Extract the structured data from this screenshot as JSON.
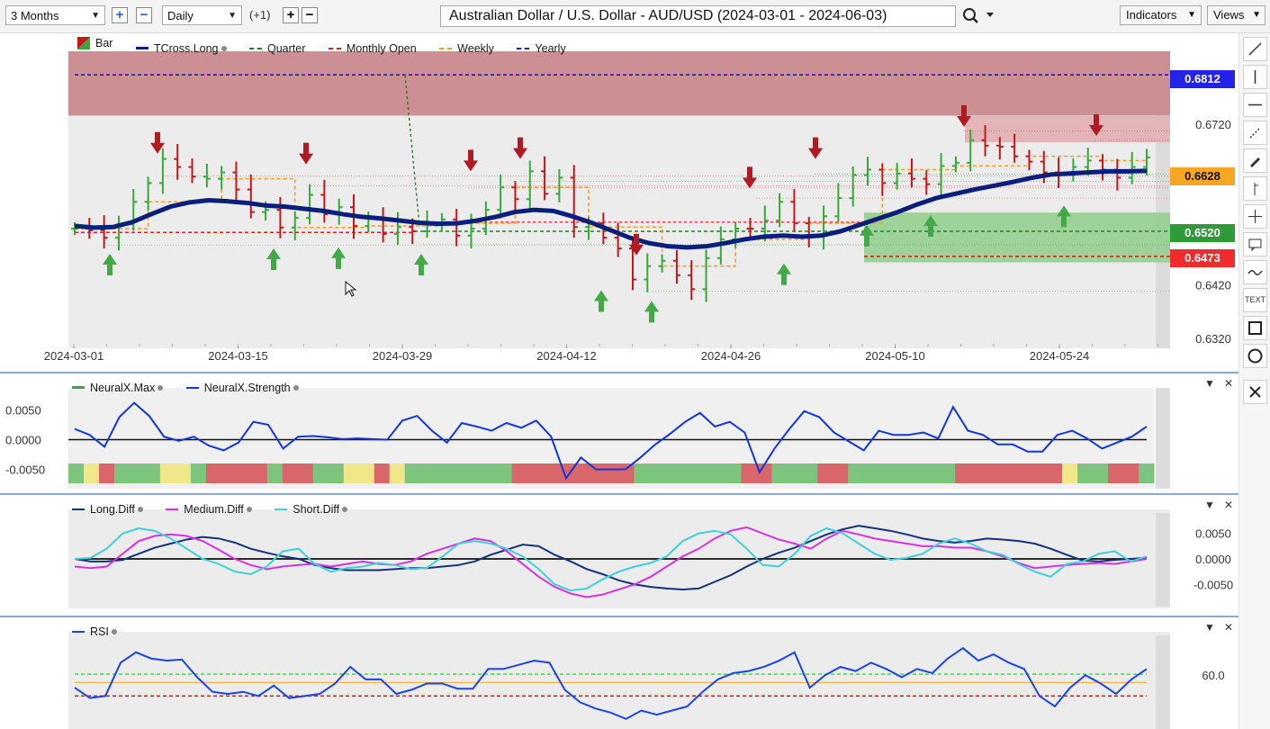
{
  "toolbar": {
    "range_label": "3 Months",
    "interval_label": "Daily",
    "offset_label": "(+1)",
    "title": "Australian Dollar / U.S. Dollar - AUD/USD (2024-03-01 - 2024-06-03)",
    "indicators_label": "Indicators",
    "views_label": "Views"
  },
  "colors": {
    "bull": "#39a83c",
    "bear": "#c0181d",
    "tcross": "#0a1f7a",
    "resistance_zone": "#c98a8f",
    "support_zone": "#8fcf8a",
    "yearly": "#1b1bd6",
    "monthly": "#e02020",
    "weekly": "#f0a030",
    "quarter": "#2c7a2c",
    "strength_line": "#1236d8",
    "long_diff": "#13337a",
    "medium_diff": "#d633e0",
    "short_diff": "#3fd0d8",
    "rsi_line": "#1c44e0"
  },
  "main_pane": {
    "legend": [
      {
        "label": "Bar",
        "icon": "bar-icon"
      },
      {
        "label": "TCross.Long"
      },
      {
        "label": "Quarter"
      },
      {
        "label": "Monthly Open"
      },
      {
        "label": "Weekly"
      },
      {
        "label": "Yearly"
      }
    ],
    "price_tags": [
      {
        "value": "0.6812",
        "bg": "#2323e8",
        "fg": "#ffffff"
      },
      {
        "value": "0.6628",
        "bg": "#f5a623",
        "fg": "#111111"
      },
      {
        "value": "0.6520",
        "bg": "#2e9a3a",
        "fg": "#ffffff"
      },
      {
        "value": "0.6473",
        "bg": "#ef2b2b",
        "fg": "#ffffff"
      }
    ]
  },
  "neural_pane": {
    "legend": [
      {
        "label": "NeuralX.Max"
      },
      {
        "label": "NeuralX.Strength"
      }
    ]
  },
  "diff_pane": {
    "legend": [
      {
        "label": "Long.Diff"
      },
      {
        "label": "Medium.Diff"
      },
      {
        "label": "Short.Diff"
      }
    ]
  },
  "rsi_pane": {
    "legend": [
      {
        "label": "RSI"
      }
    ]
  },
  "chart_data": [
    {
      "type": "ohlc",
      "title": "Australian Dollar / U.S. Dollar - AUD/USD (2024-03-01 - 2024-06-03)",
      "x_tick_labels": [
        "2024-03-01",
        "2024-03-15",
        "2024-03-29",
        "2024-04-12",
        "2024-04-26",
        "2024-05-10",
        "2024-05-24"
      ],
      "y_tick_labels": [
        "0.6720",
        "0.6628",
        "0.6520",
        "0.6420",
        "0.6320"
      ],
      "ylim": [
        0.631,
        0.6856
      ],
      "close": [
        0.6525,
        0.6522,
        0.6508,
        0.6533,
        0.6575,
        0.661,
        0.6655,
        0.664,
        0.6622,
        0.6618,
        0.663,
        0.6598,
        0.6556,
        0.656,
        0.6527,
        0.6545,
        0.6588,
        0.6552,
        0.6565,
        0.653,
        0.6545,
        0.6515,
        0.6528,
        0.652,
        0.6535,
        0.6542,
        0.6512,
        0.6525,
        0.656,
        0.6602,
        0.658,
        0.6632,
        0.659,
        0.662,
        0.6528,
        0.6535,
        0.6508,
        0.6488,
        0.643,
        0.6455,
        0.6465,
        0.6438,
        0.6412,
        0.647,
        0.6505,
        0.6525,
        0.6525,
        0.654,
        0.6575,
        0.6535,
        0.651,
        0.6548,
        0.6582,
        0.6625,
        0.6635,
        0.661,
        0.6628,
        0.6618,
        0.6608,
        0.6642,
        0.6648,
        0.669,
        0.668,
        0.6678,
        0.666,
        0.665,
        0.663,
        0.6625,
        0.664,
        0.6652,
        0.6635,
        0.662,
        0.664,
        0.6658
      ],
      "bar_direction": [
        "up",
        "down",
        "down",
        "up",
        "up",
        "up",
        "up",
        "down",
        "down",
        "up",
        "up",
        "down",
        "down",
        "up",
        "down",
        "up",
        "up",
        "down",
        "up",
        "down",
        "up",
        "down",
        "up",
        "down",
        "up",
        "up",
        "down",
        "up",
        "up",
        "up",
        "down",
        "up",
        "down",
        "up",
        "down",
        "up",
        "down",
        "down",
        "down",
        "up",
        "up",
        "down",
        "down",
        "up",
        "up",
        "up",
        "down",
        "up",
        "up",
        "down",
        "down",
        "up",
        "up",
        "up",
        "up",
        "down",
        "up",
        "down",
        "down",
        "up",
        "up",
        "up",
        "down",
        "down",
        "down",
        "down",
        "down",
        "down",
        "up",
        "up",
        "down",
        "down",
        "up",
        "up"
      ],
      "tcross_long": [
        0.653,
        0.6527,
        0.6528,
        0.6537,
        0.6552,
        0.6566,
        0.6574,
        0.6578,
        0.6576,
        0.6573,
        0.6568,
        0.6566,
        0.6562,
        0.6558,
        0.6552,
        0.6547,
        0.6544,
        0.654,
        0.6536,
        0.6534,
        0.6535,
        0.654,
        0.6547,
        0.6556,
        0.656,
        0.6558,
        0.6548,
        0.6536,
        0.6522,
        0.6508,
        0.6498,
        0.6492,
        0.649,
        0.6492,
        0.6498,
        0.6505,
        0.651,
        0.6512,
        0.651,
        0.6512,
        0.652,
        0.6532,
        0.6544,
        0.6556,
        0.657,
        0.6582,
        0.659,
        0.6598,
        0.6605,
        0.6612,
        0.662,
        0.6626,
        0.6628,
        0.663,
        0.6632,
        0.6632,
        0.6633
      ],
      "yearly_level": 0.6812,
      "monthly_open_levels": [
        0.6518,
        0.6537,
        0.6473
      ],
      "weekly_level_latest": 0.6628,
      "quarter_level": 0.652,
      "resistance_zone": [
        0.6736,
        0.6856
      ],
      "support_zone": [
        0.6462,
        0.6555
      ]
    },
    {
      "type": "line",
      "title": "NeuralX",
      "series": [
        {
          "name": "NeuralX.Strength",
          "values": [
            0.0018,
            0.0008,
            -0.0012,
            0.0038,
            0.0062,
            0.004,
            0.0005,
            -0.0002,
            0.0005,
            -0.001,
            -0.0018,
            -0.0005,
            0.003,
            0.0025,
            -0.0015,
            0.0005,
            0.0006,
            0.0004,
            0.0001,
            0.0002,
            0.0001,
            0.0,
            0.0032,
            0.004,
            0.0015,
            -0.0005,
            0.0028,
            0.0022,
            0.0015,
            0.0028,
            0.002,
            0.0032,
            0.0005,
            -0.0065,
            -0.003,
            -0.005,
            -0.005,
            -0.005,
            -0.003,
            -0.0008,
            0.001,
            0.003,
            0.0045,
            0.0022,
            0.003,
            0.0012,
            -0.0055,
            -0.0015,
            0.0018,
            0.0048,
            0.0038,
            0.0012,
            -0.0003,
            -0.0018,
            0.0015,
            0.0008,
            0.0008,
            0.0012,
            0.0002,
            0.0055,
            0.0015,
            0.0008,
            -0.0008,
            -0.0008,
            -0.002,
            -0.002,
            0.0008,
            0.0015,
            0.0002,
            -0.0015,
            -0.0005,
            0.0005,
            0.0022
          ]
        }
      ],
      "ylim": [
        -0.0078,
        0.0078
      ],
      "y_tick_labels": [
        "0.0050",
        "0.0000",
        "-0.0050"
      ],
      "max_state_segments": [
        "green",
        "yellow",
        "red",
        "green",
        "green",
        "green",
        "yellow",
        "yellow",
        "green",
        "red",
        "red",
        "red",
        "red",
        "green",
        "red",
        "red",
        "green",
        "green",
        "yellow",
        "yellow",
        "red",
        "yellow",
        "green",
        "green",
        "green",
        "green",
        "green",
        "green",
        "green",
        "red",
        "red",
        "red",
        "red",
        "red",
        "red",
        "red",
        "red",
        "green",
        "green",
        "green",
        "green",
        "green",
        "green",
        "green",
        "red",
        "red",
        "green",
        "green",
        "green",
        "red",
        "red",
        "green",
        "green",
        "green",
        "green",
        "green",
        "green",
        "green",
        "red",
        "red",
        "red",
        "red",
        "red",
        "red",
        "red",
        "yellow",
        "green",
        "green",
        "red",
        "red",
        "green"
      ]
    },
    {
      "type": "line",
      "title": "Diff",
      "series": [
        {
          "name": "Long.Diff",
          "values": [
            0.0,
            -0.0005,
            -0.0005,
            -0.0002,
            0.001,
            0.0022,
            0.003,
            0.0038,
            0.0043,
            0.004,
            0.0032,
            0.002,
            0.0012,
            0.0005,
            0.0,
            -0.0012,
            -0.0018,
            -0.0022,
            -0.0022,
            -0.0022,
            -0.002,
            -0.0018,
            -0.0018,
            -0.0015,
            -0.0012,
            -0.0005,
            0.0008,
            0.0018,
            0.0028,
            0.0025,
            0.0008,
            -0.0005,
            -0.002,
            -0.003,
            -0.0042,
            -0.005,
            -0.0055,
            -0.0058,
            -0.006,
            -0.0058,
            -0.0045,
            -0.0032,
            -0.0015,
            0.0,
            0.0012,
            0.0022,
            0.0035,
            0.0048,
            0.0058,
            0.0065,
            0.006,
            0.0055,
            0.0048,
            0.004,
            0.0035,
            0.0032,
            0.0035,
            0.004,
            0.0038,
            0.0035,
            0.003,
            0.002,
            0.0008,
            -0.0003,
            -0.0005,
            -0.0002,
            0.0,
            0.0002
          ]
        },
        {
          "name": "Medium.Diff",
          "values": [
            -0.0015,
            -0.0018,
            -0.0015,
            0.001,
            0.0035,
            0.0045,
            0.0048,
            0.0045,
            0.0035,
            0.0018,
            0.0,
            -0.0012,
            -0.002,
            -0.0015,
            -0.0012,
            -0.001,
            -0.0015,
            -0.001,
            -0.0005,
            -0.001,
            -0.0012,
            -0.0005,
            0.001,
            0.002,
            0.003,
            0.004,
            0.0035,
            0.0015,
            -0.001,
            -0.0035,
            -0.0055,
            -0.0068,
            -0.0075,
            -0.007,
            -0.006,
            -0.005,
            -0.0035,
            -0.0015,
            0.0005,
            0.002,
            0.004,
            0.0055,
            0.0062,
            0.005,
            0.0038,
            0.003,
            0.002,
            0.004,
            0.0055,
            0.0048,
            0.004,
            0.0035,
            0.003,
            0.0025,
            0.0025,
            0.0022,
            0.0022,
            0.0015,
            0.0005,
            -0.0008,
            -0.0018,
            -0.0015,
            -0.0012,
            -0.001,
            -0.0008,
            -0.001,
            -0.0005,
            0.0
          ]
        },
        {
          "name": "Short.Diff",
          "values": [
            0.0,
            0.0002,
            0.002,
            0.005,
            0.006,
            0.0055,
            0.004,
            0.002,
            0.0,
            -0.001,
            -0.0025,
            -0.003,
            -0.0015,
            0.0015,
            0.002,
            -0.001,
            -0.0025,
            -0.0018,
            -0.0015,
            -0.0008,
            -0.0012,
            -0.002,
            -0.0018,
            0.0005,
            0.003,
            0.0035,
            0.003,
            0.002,
            0.0005,
            -0.002,
            -0.005,
            -0.0062,
            -0.0058,
            -0.004,
            -0.0025,
            -0.0015,
            -0.0008,
            0.0005,
            0.0035,
            0.005,
            0.0055,
            0.0048,
            0.002,
            -0.0012,
            -0.0015,
            0.001,
            0.0045,
            0.006,
            0.005,
            0.003,
            0.001,
            -0.0002,
            0.0002,
            0.001,
            0.003,
            0.004,
            0.003,
            0.0015,
            0.0008,
            -0.001,
            -0.0025,
            -0.0035,
            -0.001,
            -0.0005,
            0.001,
            0.0015,
            -0.0005,
            0.0005
          ]
        }
      ],
      "ylim": [
        -0.009,
        0.009
      ],
      "y_tick_labels": [
        "0.0050",
        "0.0000",
        "-0.0050"
      ]
    },
    {
      "type": "line",
      "title": "RSI",
      "series": [
        {
          "name": "RSI",
          "values": [
            48,
            38,
            40,
            72,
            82,
            76,
            74,
            75,
            58,
            44,
            42,
            44,
            40,
            50,
            38,
            40,
            42,
            52,
            68,
            56,
            56,
            42,
            46,
            52,
            52,
            47,
            47,
            66,
            66,
            70,
            74,
            72,
            46,
            34,
            28,
            24,
            18,
            26,
            22,
            26,
            30,
            44,
            56,
            62,
            64,
            68,
            74,
            82,
            48,
            60,
            68,
            64,
            72,
            66,
            58,
            66,
            62,
            76,
            86,
            74,
            80,
            72,
            66,
            40,
            30,
            48,
            60,
            52,
            42,
            56,
            66
          ]
        }
      ],
      "ylim": [
        10,
        100
      ],
      "y_tick_labels": [
        "60.0"
      ],
      "levels": [
        61,
        53,
        40
      ]
    }
  ]
}
